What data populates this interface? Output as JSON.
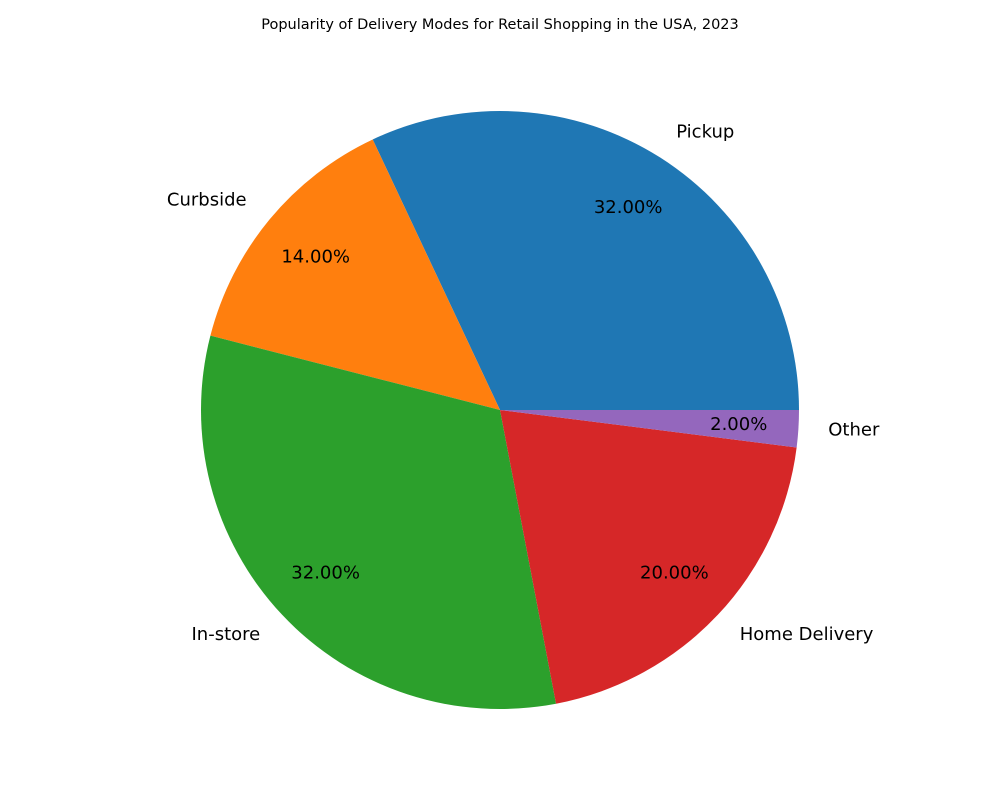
{
  "chart_data": {
    "type": "pie",
    "title": "Popularity of Delivery Modes for Retail Shopping in the USA, 2023",
    "categories": [
      "Pickup",
      "Curbside",
      "In-store",
      "Home Delivery",
      "Other"
    ],
    "values": [
      32,
      14,
      32,
      20,
      2
    ],
    "value_labels": [
      "32.00%",
      "14.00%",
      "32.00%",
      "20.00%",
      "2.00%"
    ],
    "colors": [
      "#1f77b4",
      "#ff7f0e",
      "#2ca02c",
      "#d62728",
      "#9467bd"
    ],
    "start_angle_deg": 0,
    "direction": "counterclockwise",
    "legend": "none"
  }
}
